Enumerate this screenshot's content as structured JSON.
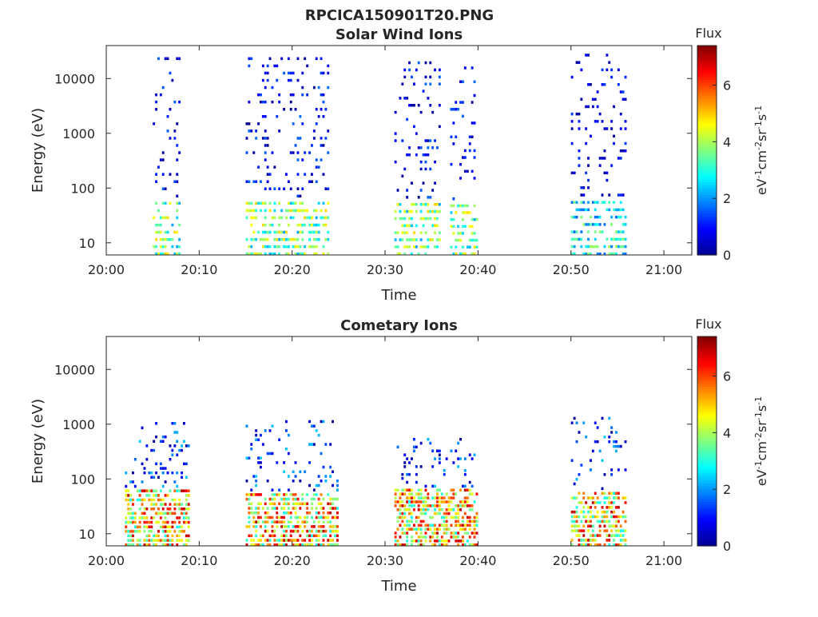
{
  "figure": {
    "title": "RPCICA150901T20.PNG"
  },
  "colormap": [
    "#00008f",
    "#0000ff",
    "#0080ff",
    "#00ffff",
    "#80ff80",
    "#ffff00",
    "#ff8000",
    "#ff0000",
    "#800000"
  ],
  "chart_data": [
    {
      "type": "heatmap",
      "title": "Solar Wind Ions",
      "xlabel": "Time",
      "ylabel": "Energy (eV)",
      "x_ticks": [
        "20:00",
        "20:10",
        "20:20",
        "20:30",
        "20:40",
        "20:50",
        "21:00"
      ],
      "x_range_minutes": [
        0,
        63
      ],
      "y_scale": "log",
      "y_ticks": [
        "10",
        "100",
        "1000",
        "10000"
      ],
      "y_range": [
        6,
        40000
      ],
      "colorbar": {
        "title": "Flux",
        "label": "eV-1cm-2sr-1s-1",
        "ticks": [
          "0",
          "2",
          "4",
          "6"
        ],
        "range": [
          0,
          7.4
        ]
      },
      "bursts": [
        {
          "t_start": "20:05",
          "t_end": "20:08",
          "energy_max": 30000,
          "peak_flux": 5.0
        },
        {
          "t_start": "20:15",
          "t_end": "20:24",
          "energy_max": 30000,
          "peak_flux": 5.0
        },
        {
          "t_start": "20:31",
          "t_end": "20:36",
          "energy_max": 25000,
          "peak_flux": 5.0
        },
        {
          "t_start": "20:37",
          "t_end": "20:40",
          "energy_max": 20000,
          "peak_flux": 5.0
        },
        {
          "t_start": "20:50",
          "t_end": "20:56",
          "energy_max": 35000,
          "peak_flux": 4.0
        }
      ]
    },
    {
      "type": "heatmap",
      "title": "Cometary Ions",
      "xlabel": "Time",
      "ylabel": "Energy (eV)",
      "x_ticks": [
        "20:00",
        "20:10",
        "20:20",
        "20:30",
        "20:40",
        "20:50",
        "21:00"
      ],
      "x_range_minutes": [
        0,
        63
      ],
      "y_scale": "log",
      "y_ticks": [
        "10",
        "100",
        "1000",
        "10000"
      ],
      "y_range": [
        6,
        40000
      ],
      "colorbar": {
        "title": "Flux",
        "label": "eV-1cm-2sr-1s-1",
        "ticks": [
          "0",
          "2",
          "4",
          "6"
        ],
        "range": [
          0,
          7.4
        ]
      },
      "bursts": [
        {
          "t_start": "20:02",
          "t_end": "20:09",
          "energy_max": 1200,
          "peak_flux": 7.0
        },
        {
          "t_start": "20:15",
          "t_end": "20:25",
          "energy_max": 1300,
          "peak_flux": 7.0
        },
        {
          "t_start": "20:31",
          "t_end": "20:40",
          "energy_max": 600,
          "peak_flux": 7.0
        },
        {
          "t_start": "20:50",
          "t_end": "20:56",
          "energy_max": 1500,
          "peak_flux": 7.0
        }
      ]
    }
  ]
}
